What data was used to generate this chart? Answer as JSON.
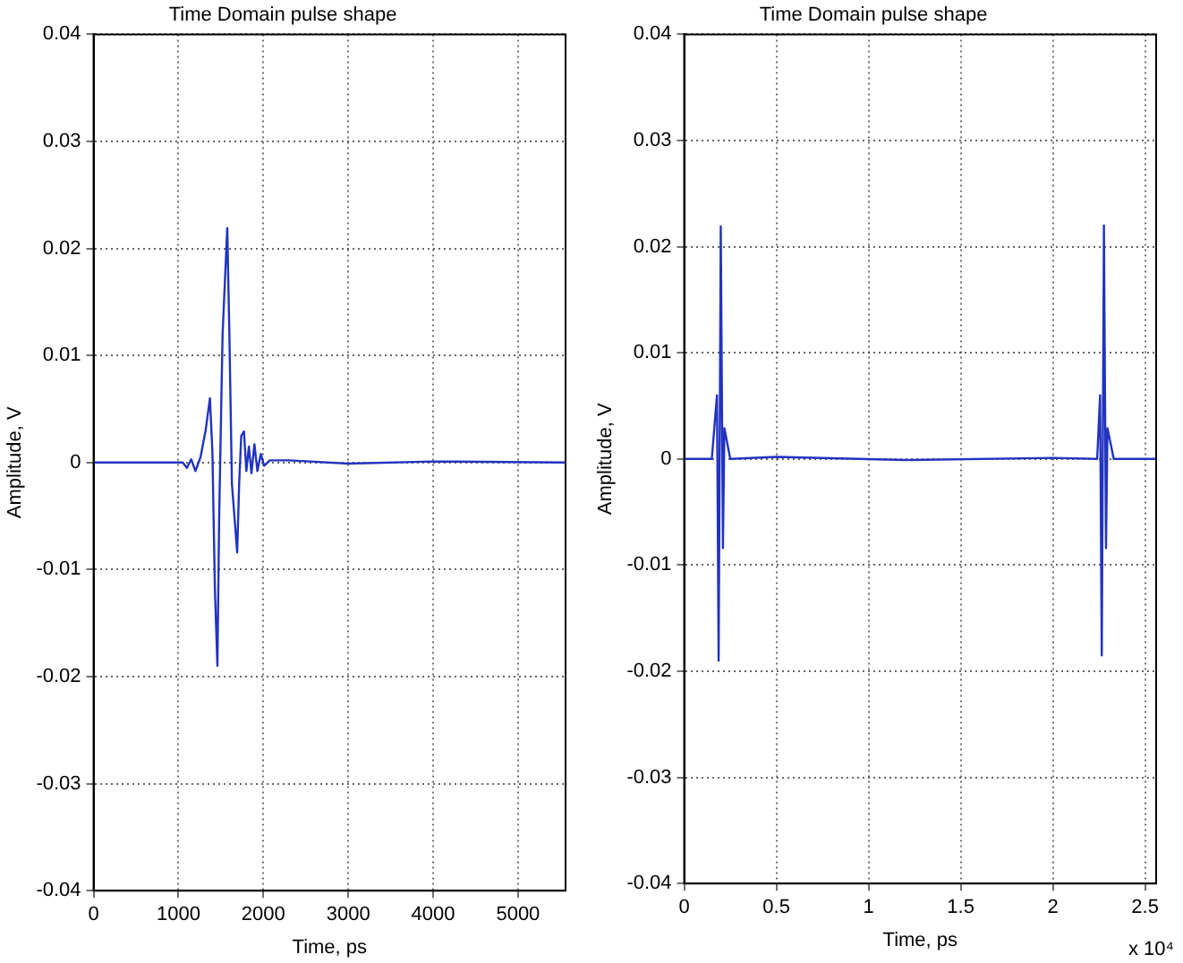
{
  "chart_data": [
    {
      "type": "line",
      "title": "Time Domain pulse shape",
      "xlabel": "Time, ps",
      "ylabel": "Amplitude, V",
      "grid": true,
      "legend": false,
      "marker": "none",
      "line_style": "solid",
      "xlim": [
        0,
        5560
      ],
      "xticks": [
        0,
        1000,
        2000,
        3000,
        4000,
        5000
      ],
      "ylim": [
        -0.04,
        0.04
      ],
      "yticks": [
        -0.04,
        -0.03,
        -0.02,
        -0.01,
        0,
        0.01,
        0.02,
        0.03,
        0.04
      ],
      "series": [
        {
          "color": "#2233c0",
          "x": [
            0,
            1050,
            1100,
            1150,
            1200,
            1260,
            1320,
            1371,
            1400,
            1430,
            1459,
            1480,
            1520,
            1575,
            1600,
            1630,
            1692,
            1715,
            1740,
            1772,
            1800,
            1830,
            1860,
            1895,
            1930,
            1970,
            2010,
            2077,
            2300,
            3000,
            4000,
            5560
          ],
          "values": [
            0,
            0,
            -0.0005,
            0.0003,
            -0.0008,
            0.0005,
            0.003,
            0.006,
            0.001,
            -0.012,
            -0.019,
            -0.005,
            0.012,
            0.0219,
            0.012,
            -0.002,
            -0.0084,
            -0.002,
            0.0025,
            0.0029,
            -0.0008,
            0.0015,
            -0.001,
            0.0017,
            -0.0008,
            0.0008,
            -0.0003,
            0.0002,
            0.0002,
            -0.0001,
            0.0001,
            0
          ]
        }
      ]
    },
    {
      "type": "line",
      "title": "Time Domain pulse shape",
      "xlabel": "Time, ps",
      "ylabel": "Amplitude, V",
      "annotations": [
        "x 10⁴"
      ],
      "grid": true,
      "legend": false,
      "marker": "none",
      "line_style": "solid",
      "xlim": [
        0,
        2.56
      ],
      "xticks": [
        0,
        0.5,
        1,
        1.5,
        2,
        2.5
      ],
      "ylim": [
        -0.04,
        0.04
      ],
      "yticks": [
        -0.04,
        -0.03,
        -0.02,
        -0.01,
        0,
        0.01,
        0.02,
        0.03,
        0.04
      ],
      "series": [
        {
          "color": "#2233c0",
          "x": [
            0,
            0.15,
            0.178,
            0.187,
            0.1986,
            0.2103,
            0.2183,
            0.25,
            0.5,
            1.2,
            2.0,
            2.24,
            2.256,
            2.265,
            2.2767,
            2.288,
            2.296,
            2.33,
            2.56
          ],
          "values": [
            0,
            0,
            0.006,
            -0.019,
            0.0219,
            -0.0084,
            0.0029,
            0,
            0.0002,
            -0.0001,
            0.0001,
            0,
            0.006,
            -0.0185,
            0.022,
            -0.0084,
            0.0029,
            0,
            0
          ]
        }
      ]
    }
  ]
}
